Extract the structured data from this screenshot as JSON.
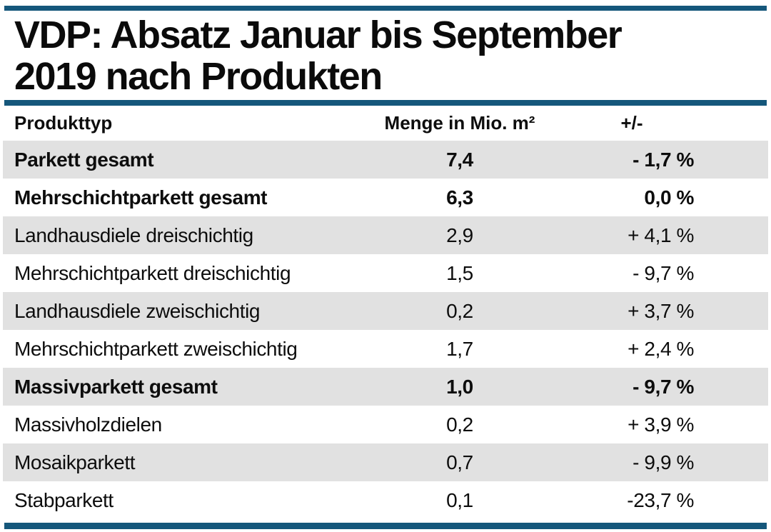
{
  "page": {
    "accent_color": "#15577b",
    "alt_row_color": "#e1e1e1",
    "text_color": "#0d0d0d"
  },
  "title": {
    "line1": "VDP: Absatz Januar bis September",
    "line2": "2019 nach Produkten"
  },
  "table": {
    "columns": [
      {
        "label": "Produkttyp"
      },
      {
        "label": "Menge in Mio. m²"
      },
      {
        "label": "+/-"
      }
    ],
    "rows": [
      {
        "label": "Parkett gesamt",
        "menge": "7,4",
        "change": "- 1,7 %",
        "bold": true
      },
      {
        "label": "Mehrschichtparkett gesamt",
        "menge": "6,3",
        "change": "0,0 %",
        "bold": true
      },
      {
        "label": "Landhausdiele dreischichtig",
        "menge": "2,9",
        "change": "+ 4,1 %",
        "bold": false
      },
      {
        "label": "Mehrschichtparkett dreischichtig",
        "menge": "1,5",
        "change": "- 9,7 %",
        "bold": false
      },
      {
        "label": "Landhausdiele zweischichtig",
        "menge": "0,2",
        "change": "+ 3,7 %",
        "bold": false
      },
      {
        "label": "Mehrschichtparkett zweischichtig",
        "menge": "1,7",
        "change": "+ 2,4 %",
        "bold": false
      },
      {
        "label": "Massivparkett gesamt",
        "menge": "1,0",
        "change": "- 9,7 %",
        "bold": true
      },
      {
        "label": "Massivholzdielen",
        "menge": "0,2",
        "change": "+ 3,9 %",
        "bold": false
      },
      {
        "label": "Mosaikparkett",
        "menge": "0,7",
        "change": "- 9,9 %",
        "bold": false
      },
      {
        "label": "Stabparkett",
        "menge": "0,1",
        "change": "-23,7 %",
        "bold": false
      }
    ]
  },
  "chart_data": {
    "type": "table",
    "title": "VDP: Absatz Januar bis September 2019 nach Produkten",
    "columns": [
      "Produkttyp",
      "Menge in Mio. m²",
      "+/-"
    ],
    "rows": [
      {
        "produkttyp": "Parkett gesamt",
        "menge_mio_m2": 7.4,
        "change_pct": -1.7,
        "emphasized": true
      },
      {
        "produkttyp": "Mehrschichtparkett gesamt",
        "menge_mio_m2": 6.3,
        "change_pct": 0.0,
        "emphasized": true
      },
      {
        "produkttyp": "Landhausdiele dreischichtig",
        "menge_mio_m2": 2.9,
        "change_pct": 4.1,
        "emphasized": false
      },
      {
        "produkttyp": "Mehrschichtparkett dreischichtig",
        "menge_mio_m2": 1.5,
        "change_pct": -9.7,
        "emphasized": false
      },
      {
        "produkttyp": "Landhausdiele zweischichtig",
        "menge_mio_m2": 0.2,
        "change_pct": 3.7,
        "emphasized": false
      },
      {
        "produkttyp": "Mehrschichtparkett zweischichtig",
        "menge_mio_m2": 1.7,
        "change_pct": 2.4,
        "emphasized": false
      },
      {
        "produkttyp": "Massivparkett gesamt",
        "menge_mio_m2": 1.0,
        "change_pct": -9.7,
        "emphasized": true
      },
      {
        "produkttyp": "Massivholzdielen",
        "menge_mio_m2": 0.2,
        "change_pct": 3.9,
        "emphasized": false
      },
      {
        "produkttyp": "Mosaikparkett",
        "menge_mio_m2": 0.7,
        "change_pct": -9.9,
        "emphasized": false
      },
      {
        "produkttyp": "Stabparkett",
        "menge_mio_m2": 0.1,
        "change_pct": -23.7,
        "emphasized": false
      }
    ]
  }
}
